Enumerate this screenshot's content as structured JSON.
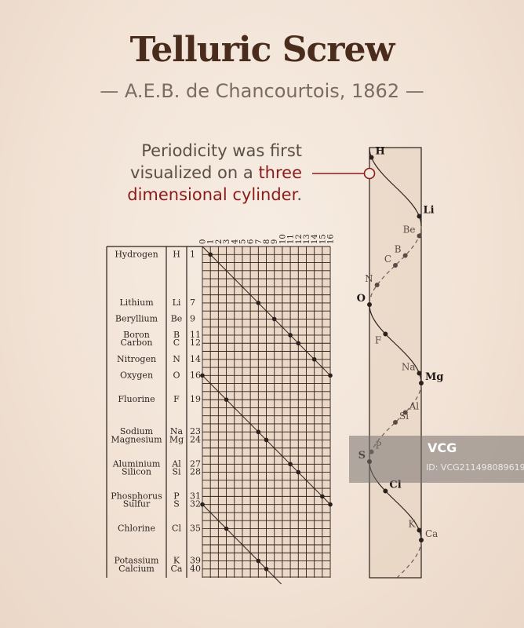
{
  "header": {
    "title": "Telluric Screw",
    "subtitle": "— A.E.B. de Chancourtois, 1862 —"
  },
  "callout": {
    "line1": "Periodicity was first",
    "line2_plain": "visualized on a ",
    "line2_highlight": "three",
    "line3_highlight": "dimensional cylinder",
    "line3_end": "."
  },
  "colors": {
    "accent": "#8b1a1a",
    "ink": "#2a201c",
    "title": "#4a2c1c",
    "grid_bg": "#ecd8c6"
  },
  "period": 16,
  "column_labels": [
    "0",
    "1",
    "2",
    "3",
    "4",
    "5",
    "6",
    "7",
    "8",
    "9",
    "10",
    "11",
    "12",
    "13",
    "14",
    "15",
    "16"
  ],
  "elements": [
    {
      "name": "Hydrogen",
      "symbol": "H",
      "weight": 1
    },
    {
      "name": "Lithium",
      "symbol": "Li",
      "weight": 7
    },
    {
      "name": "Beryllium",
      "symbol": "Be",
      "weight": 9
    },
    {
      "name": "Boron",
      "symbol": "B",
      "weight": 11
    },
    {
      "name": "Carbon",
      "symbol": "C",
      "weight": 12
    },
    {
      "name": "Nitrogen",
      "symbol": "N",
      "weight": 14
    },
    {
      "name": "Oxygen",
      "symbol": "O",
      "weight": 16
    },
    {
      "name": "Fluorine",
      "symbol": "F",
      "weight": 19
    },
    {
      "name": "Sodium",
      "symbol": "Na",
      "weight": 23
    },
    {
      "name": "Magnesium",
      "symbol": "Mg",
      "weight": 24
    },
    {
      "name": "Aluminium",
      "symbol": "Al",
      "weight": 27
    },
    {
      "name": "Silicon",
      "symbol": "Si",
      "weight": 28
    },
    {
      "name": "Phosphorus",
      "symbol": "P",
      "weight": 31
    },
    {
      "name": "Sulfur",
      "symbol": "S",
      "weight": 32
    },
    {
      "name": "Chlorine",
      "symbol": "Cl",
      "weight": 35
    },
    {
      "name": "Potassium",
      "symbol": "K",
      "weight": 39
    },
    {
      "name": "Calcium",
      "symbol": "Ca",
      "weight": 40
    }
  ],
  "watermark": {
    "logo": "VCG",
    "id": "ID: VCG211498089619"
  }
}
